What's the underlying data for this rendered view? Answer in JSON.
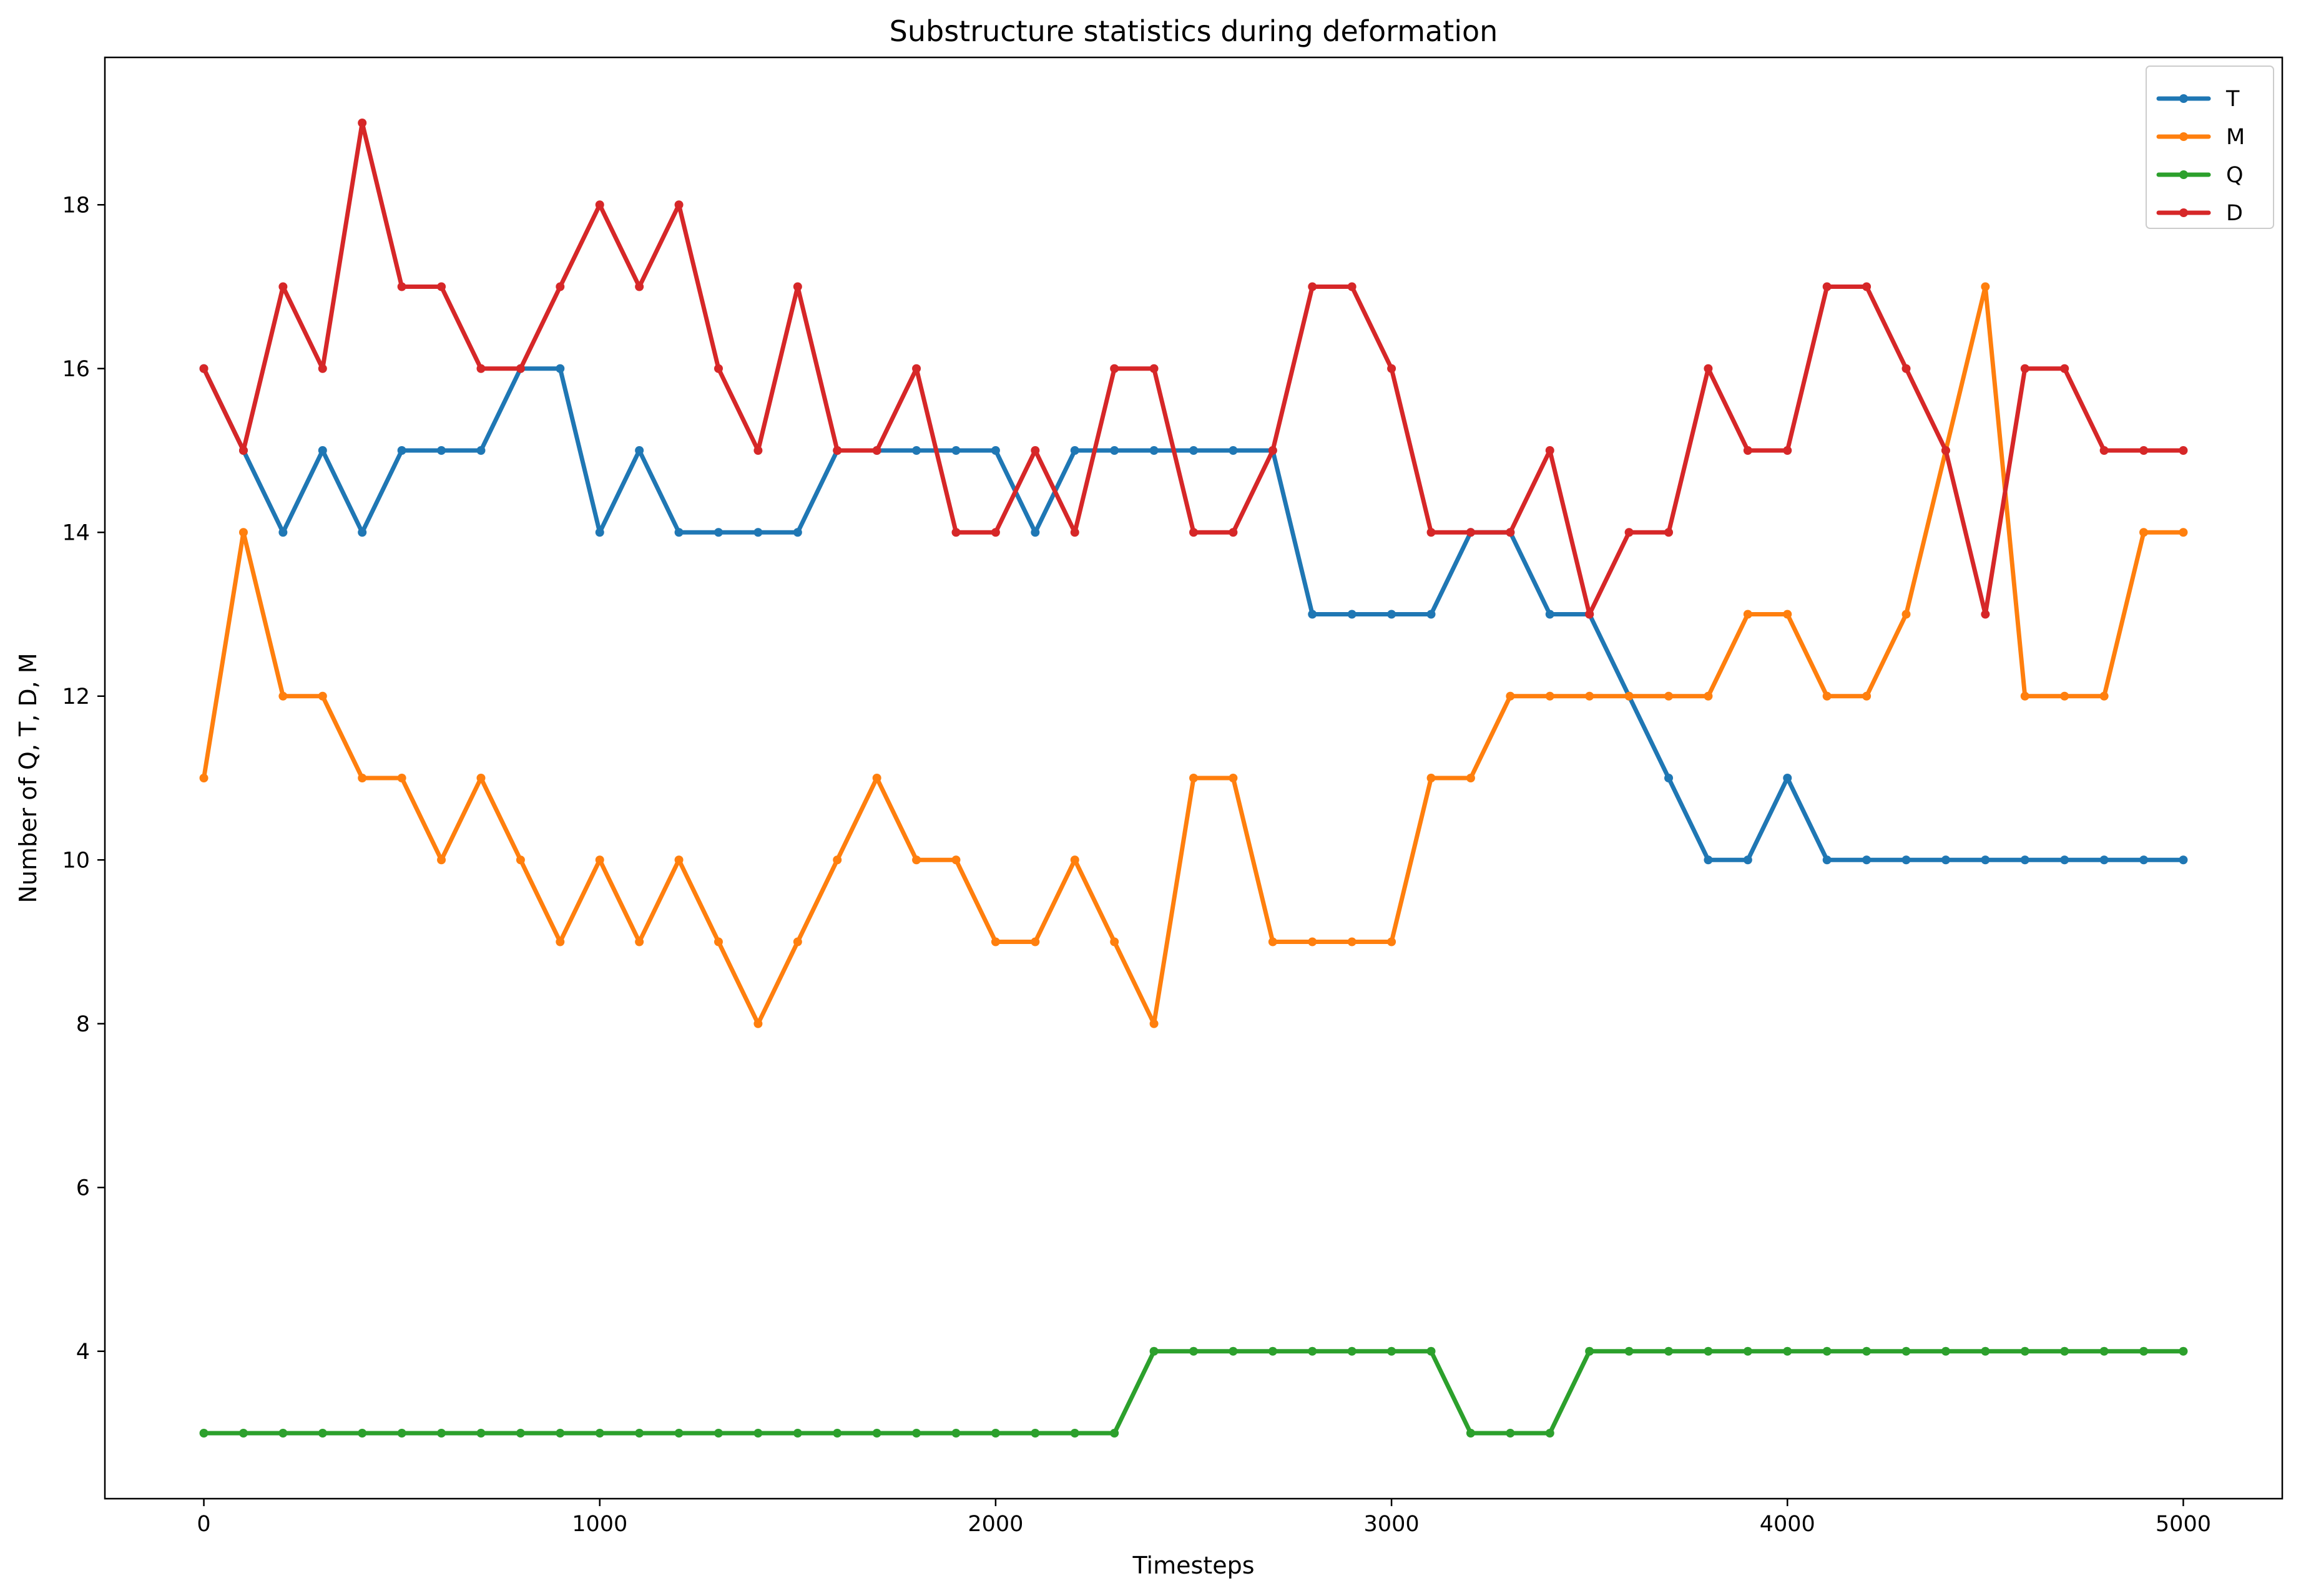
{
  "chart_data": {
    "type": "line",
    "title": "Substructure statistics during deformation",
    "xlabel": "Timesteps",
    "ylabel": "Number of Q, T, D, M",
    "xlim": [
      -250,
      5250
    ],
    "ylim": [
      2.2,
      19.8
    ],
    "xticks": [
      0,
      1000,
      2000,
      3000,
      4000,
      5000
    ],
    "yticks": [
      4,
      6,
      8,
      10,
      12,
      14,
      16,
      18
    ],
    "legend_position": "top-right",
    "grid": false,
    "x": [
      0,
      100,
      200,
      300,
      400,
      500,
      600,
      700,
      800,
      900,
      1000,
      1100,
      1200,
      1300,
      1400,
      1500,
      1600,
      1700,
      1800,
      1900,
      2000,
      2100,
      2200,
      2300,
      2400,
      2500,
      2600,
      2700,
      2800,
      2900,
      3000,
      3100,
      3200,
      3300,
      3400,
      3500,
      3600,
      3700,
      3800,
      3900,
      4000,
      4100,
      4200,
      4300,
      4400,
      4500,
      4600,
      4700,
      4800,
      4900,
      5000
    ],
    "series": [
      {
        "name": "T",
        "color": "#1f77b4",
        "values": [
          16,
          15,
          14,
          15,
          14,
          15,
          15,
          15,
          16,
          16,
          14,
          15,
          14,
          14,
          14,
          14,
          15,
          15,
          15,
          15,
          15,
          14,
          15,
          15,
          15,
          15,
          15,
          15,
          13,
          13,
          13,
          13,
          14,
          14,
          13,
          13,
          12,
          11,
          10,
          10,
          11,
          10,
          10,
          10,
          10,
          10,
          10,
          10,
          10,
          10,
          10
        ]
      },
      {
        "name": "M",
        "color": "#ff7f0e",
        "values": [
          11,
          14,
          12,
          12,
          11,
          11,
          10,
          11,
          10,
          9,
          10,
          9,
          10,
          9,
          8,
          9,
          10,
          11,
          10,
          10,
          9,
          9,
          10,
          9,
          8,
          11,
          11,
          9,
          9,
          9,
          9,
          11,
          11,
          12,
          12,
          12,
          12,
          12,
          12,
          13,
          13,
          12,
          12,
          13,
          15,
          17,
          12,
          12,
          12,
          14,
          14
        ]
      },
      {
        "name": "Q",
        "color": "#2ca02c",
        "values": [
          3,
          3,
          3,
          3,
          3,
          3,
          3,
          3,
          3,
          3,
          3,
          3,
          3,
          3,
          3,
          3,
          3,
          3,
          3,
          3,
          3,
          3,
          3,
          3,
          4,
          4,
          4,
          4,
          4,
          4,
          4,
          4,
          3,
          3,
          3,
          4,
          4,
          4,
          4,
          4,
          4,
          4,
          4,
          4,
          4,
          4,
          4,
          4,
          4,
          4,
          4
        ]
      },
      {
        "name": "D",
        "color": "#d62728",
        "values": [
          16,
          15,
          17,
          16,
          19,
          17,
          17,
          16,
          16,
          17,
          18,
          17,
          18,
          16,
          15,
          17,
          15,
          15,
          16,
          14,
          14,
          15,
          14,
          16,
          16,
          14,
          14,
          15,
          17,
          17,
          16,
          14,
          14,
          14,
          15,
          13,
          14,
          14,
          16,
          15,
          15,
          17,
          17,
          16,
          15,
          13,
          16,
          16,
          15,
          15,
          15
        ]
      }
    ]
  }
}
